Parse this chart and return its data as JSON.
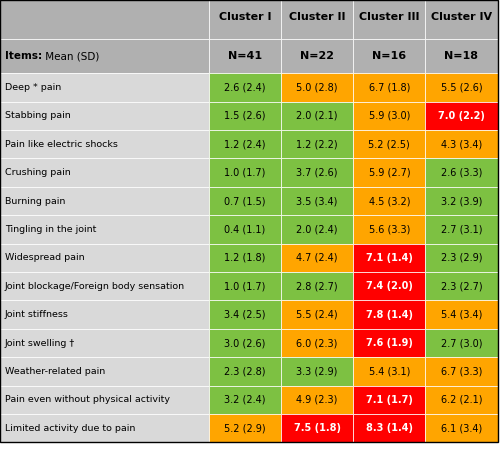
{
  "header_row1": [
    "",
    "Cluster I",
    "Cluster II",
    "Cluster III",
    "Cluster IV"
  ],
  "header_row2": [
    "Items: Mean (SD)",
    "N=41",
    "N=22",
    "N=16",
    "N=18"
  ],
  "rows": [
    [
      "Deep * pain",
      "2.6 (2.4)",
      "5.0 (2.8)",
      "6.7 (1.8)",
      "5.5 (2.6)"
    ],
    [
      "Stabbing pain",
      "1.5 (2.6)",
      "2.0 (2.1)",
      "5.9 (3.0)",
      "7.0 (2.2)"
    ],
    [
      "Pain like electric shocks",
      "1.2 (2.4)",
      "1.2 (2.2)",
      "5.2 (2.5)",
      "4.3 (3.4)"
    ],
    [
      "Crushing pain",
      "1.0 (1.7)",
      "3.7 (2.6)",
      "5.9 (2.7)",
      "2.6 (3.3)"
    ],
    [
      "Burning pain",
      "0.7 (1.5)",
      "3.5 (3.4)",
      "4.5 (3.2)",
      "3.2 (3.9)"
    ],
    [
      "Tingling in the joint",
      "0.4 (1.1)",
      "2.0 (2.4)",
      "5.6 (3.3)",
      "2.7 (3.1)"
    ],
    [
      "Widespread pain",
      "1.2 (1.8)",
      "4.7 (2.4)",
      "7.1 (1.4)",
      "2.3 (2.9)"
    ],
    [
      "Joint blockage/Foreign body sensation",
      "1.0 (1.7)",
      "2.8 (2.7)",
      "7.4 (2.0)",
      "2.3 (2.7)"
    ],
    [
      "Joint stiffness",
      "3.4 (2.5)",
      "5.5 (2.4)",
      "7.8 (1.4)",
      "5.4 (3.4)"
    ],
    [
      "Joint swelling †",
      "3.0 (2.6)",
      "6.0 (2.3)",
      "7.6 (1.9)",
      "2.7 (3.0)"
    ],
    [
      "Weather-related pain",
      "2.3 (2.8)",
      "3.3 (2.9)",
      "5.4 (3.1)",
      "6.7 (3.3)"
    ],
    [
      "Pain even without physical activity",
      "3.2 (2.4)",
      "4.9 (2.3)",
      "7.1 (1.7)",
      "6.2 (2.1)"
    ],
    [
      "Limited activity due to pain",
      "5.2 (2.9)",
      "7.5 (1.8)",
      "8.3 (1.4)",
      "6.1 (3.4)"
    ]
  ],
  "values": [
    [
      2.6,
      5.0,
      6.7,
      5.5
    ],
    [
      1.5,
      2.0,
      5.9,
      7.0
    ],
    [
      1.2,
      1.2,
      5.2,
      4.3
    ],
    [
      1.0,
      3.7,
      5.9,
      2.6
    ],
    [
      0.7,
      3.5,
      4.5,
      3.2
    ],
    [
      0.4,
      2.0,
      5.6,
      2.7
    ],
    [
      1.2,
      4.7,
      7.1,
      2.3
    ],
    [
      1.0,
      2.8,
      7.4,
      2.3
    ],
    [
      3.4,
      5.5,
      7.8,
      5.4
    ],
    [
      3.0,
      6.0,
      7.6,
      2.7
    ],
    [
      2.3,
      3.3,
      5.4,
      6.7
    ],
    [
      3.2,
      4.9,
      7.1,
      6.2
    ],
    [
      5.2,
      7.5,
      8.3,
      6.1
    ]
  ],
  "color_red": "#ff0000",
  "color_orange": "#ffa500",
  "color_green": "#7dc142",
  "color_header_bg": "#b0b0b0",
  "color_white": "#ffffff",
  "color_label_col": "#d9d9d9",
  "thresh_red": 7.0,
  "thresh_orange_low": 4.0,
  "thresh_orange_high": 7.0,
  "fig_width": 5.0,
  "fig_height": 4.58
}
